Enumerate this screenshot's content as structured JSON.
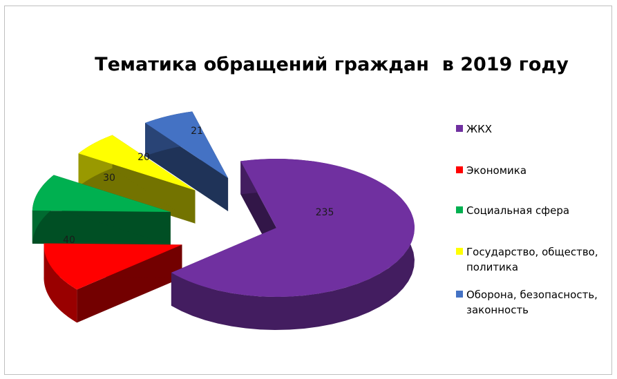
{
  "chart_data": {
    "type": "pie",
    "title": "Тематика обращений граждан  в 2019 году",
    "slices": [
      {
        "name": "ЖКХ",
        "value": 235,
        "color": "#7030A0"
      },
      {
        "name": "Экономика",
        "value": 40,
        "color": "#FF0000"
      },
      {
        "name": "Социальная сфера",
        "value": 30,
        "color": "#00B050"
      },
      {
        "name": "Государство, общество, политика",
        "value": 20,
        "color": "#FFFF00"
      },
      {
        "name": "Оборона, безопасность, законность",
        "value": 21,
        "color": "#4472C4"
      }
    ],
    "legend_position": "right",
    "style": "3d-exploded"
  },
  "legend_lines": [
    [
      "ЖКХ"
    ],
    [
      "Экономика"
    ],
    [
      "Социальная сфера"
    ],
    [
      "Государство, общество,",
      "политика"
    ],
    [
      "Оборона, безопасность,",
      "законность"
    ]
  ]
}
